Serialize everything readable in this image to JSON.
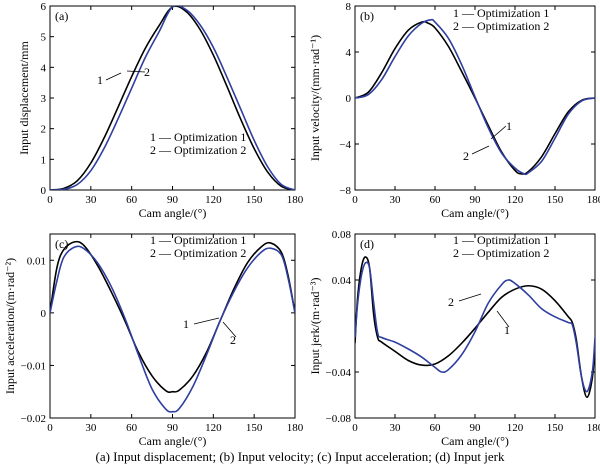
{
  "caption": "(a) Input displacement; (b) Input velocity; (c) Input acceleration; (d) Input jerk",
  "colors": {
    "optimization1": "#000000",
    "optimization2": "#2f3fa0"
  },
  "chart_data": [
    {
      "id": "a",
      "type": "line",
      "panel_label": "(a)",
      "xlabel": "Cam angle/(°)",
      "ylabel": "Input displacement/mm",
      "xlim": [
        0,
        180
      ],
      "ylim": [
        0,
        6
      ],
      "xticks": [
        0,
        30,
        60,
        90,
        120,
        150,
        180
      ],
      "yticks": [
        0,
        1,
        2,
        3,
        4,
        5,
        6
      ],
      "ytick_labels": [
        "0",
        "1",
        "2",
        "3",
        "4",
        "5",
        "6"
      ],
      "legend": [
        "1 — Optimization 1",
        "2 — Optimization 2"
      ],
      "annotations": [
        "1",
        "2"
      ],
      "series": [
        {
          "name": "Optimization 1",
          "x": [
            0,
            10,
            20,
            30,
            40,
            50,
            60,
            70,
            80,
            90,
            100,
            110,
            120,
            130,
            140,
            150,
            160,
            170,
            180
          ],
          "values": [
            0,
            0.05,
            0.3,
            0.88,
            1.72,
            2.7,
            3.7,
            4.62,
            5.35,
            5.97,
            5.82,
            5.25,
            4.4,
            3.38,
            2.32,
            1.35,
            0.58,
            0.12,
            0
          ]
        },
        {
          "name": "Optimization 2",
          "x": [
            0,
            10,
            20,
            30,
            40,
            50,
            60,
            70,
            80,
            90,
            100,
            110,
            120,
            130,
            140,
            150,
            160,
            170,
            180
          ],
          "values": [
            0,
            0.02,
            0.18,
            0.63,
            1.38,
            2.32,
            3.32,
            4.32,
            5.15,
            5.97,
            5.88,
            5.4,
            4.65,
            3.68,
            2.65,
            1.62,
            0.75,
            0.18,
            0
          ]
        }
      ]
    },
    {
      "id": "b",
      "type": "line",
      "panel_label": "(b)",
      "xlabel": "Cam angle/(°)",
      "ylabel": "Input velocity/(mm·rad⁻¹)",
      "xlim": [
        0,
        180
      ],
      "ylim": [
        -8,
        8
      ],
      "xticks": [
        0,
        30,
        60,
        90,
        120,
        150,
        180
      ],
      "yticks": [
        -8,
        -4,
        0,
        4,
        8
      ],
      "ytick_labels": [
        "−8",
        "−4",
        "0",
        "4",
        "8"
      ],
      "legend": [
        "1 — Optimization 1",
        "2 — Optimization 2"
      ],
      "annotations": [
        "1",
        "2"
      ],
      "series": [
        {
          "name": "Optimization 1",
          "x": [
            0,
            10,
            20,
            30,
            40,
            50,
            55,
            60,
            70,
            80,
            90,
            100,
            110,
            120,
            125,
            130,
            140,
            150,
            160,
            170,
            180
          ],
          "values": [
            0,
            0.5,
            2.2,
            4.3,
            5.9,
            6.6,
            6.5,
            6.1,
            4.5,
            2.3,
            0,
            -2.4,
            -4.7,
            -6.3,
            -6.6,
            -6.4,
            -5.1,
            -3.1,
            -1.2,
            -0.2,
            0
          ]
        },
        {
          "name": "Optimization 2",
          "x": [
            0,
            10,
            20,
            30,
            40,
            50,
            57,
            60,
            70,
            80,
            90,
            100,
            110,
            120,
            127,
            130,
            140,
            150,
            160,
            170,
            180
          ],
          "values": [
            0,
            0.3,
            1.6,
            3.6,
            5.4,
            6.5,
            6.8,
            6.6,
            5.2,
            2.9,
            0.1,
            -2.6,
            -4.8,
            -6.1,
            -6.6,
            -6.5,
            -5.5,
            -3.5,
            -1.4,
            -0.25,
            0
          ]
        }
      ]
    },
    {
      "id": "c",
      "type": "line",
      "panel_label": "(c)",
      "xlabel": "Cam angle/(°)",
      "ylabel": "Input acceleration/(m·rad⁻²)",
      "xlim": [
        0,
        180
      ],
      "ylim": [
        -0.02,
        0.015
      ],
      "xticks": [
        0,
        30,
        60,
        90,
        120,
        150,
        180
      ],
      "yticks": [
        -0.02,
        -0.01,
        0,
        0.01
      ],
      "ytick_labels": [
        "−0.02",
        "−0.01",
        "0",
        "0.01"
      ],
      "legend": [
        "1 — Optimization 1",
        "2 — Optimization 2"
      ],
      "annotations": [
        "1",
        "2"
      ],
      "series": [
        {
          "name": "Optimization 1",
          "x": [
            0,
            5,
            10,
            18,
            25,
            35,
            45,
            55,
            65,
            75,
            85,
            90,
            95,
            105,
            115,
            125,
            135,
            145,
            155,
            162,
            170,
            175,
            180
          ],
          "values": [
            0,
            0.0085,
            0.012,
            0.0135,
            0.0128,
            0.009,
            0.004,
            -0.0015,
            -0.0075,
            -0.012,
            -0.0148,
            -0.015,
            -0.0147,
            -0.012,
            -0.0075,
            -0.0015,
            0.0045,
            0.0095,
            0.0125,
            0.0133,
            0.0115,
            0.007,
            0
          ]
        },
        {
          "name": "Optimization 2",
          "x": [
            0,
            5,
            10,
            18,
            25,
            35,
            45,
            55,
            65,
            75,
            85,
            90,
            95,
            105,
            115,
            125,
            135,
            145,
            155,
            162,
            170,
            175,
            180
          ],
          "values": [
            0,
            0.006,
            0.0105,
            0.0125,
            0.0122,
            0.0095,
            0.005,
            -0.001,
            -0.008,
            -0.0145,
            -0.0183,
            -0.0188,
            -0.0182,
            -0.014,
            -0.008,
            -0.0015,
            0.004,
            0.0085,
            0.0115,
            0.0123,
            0.011,
            0.0065,
            0
          ]
        }
      ]
    },
    {
      "id": "d",
      "type": "line",
      "panel_label": "(d)",
      "xlabel": "Cam angle/(°)",
      "ylabel": "Input jerk/(m·rad⁻³)",
      "xlim": [
        0,
        180
      ],
      "ylim": [
        -0.08,
        0.08
      ],
      "xticks": [
        0,
        30,
        60,
        90,
        120,
        150,
        180
      ],
      "yticks": [
        -0.08,
        -0.04,
        0.04,
        0.08
      ],
      "ytick_labels": [
        "−0.08",
        "−0.04",
        "0.04",
        "0.08"
      ],
      "legend": [
        "1 — Optimization 1",
        "2 — Optimization 2"
      ],
      "annotations": [
        "2",
        "1"
      ],
      "series": [
        {
          "name": "Optimization 1",
          "x": [
            0,
            2,
            5,
            8,
            11,
            14,
            17,
            20,
            30,
            40,
            50,
            60,
            70,
            80,
            90,
            100,
            110,
            120,
            130,
            140,
            150,
            160,
            163,
            166,
            170,
            174,
            178,
            180
          ],
          "values": [
            -0.015,
            0.025,
            0.052,
            0.06,
            0.05,
            0.01,
            -0.01,
            -0.014,
            -0.022,
            -0.03,
            -0.034,
            -0.033,
            -0.026,
            -0.015,
            -0.002,
            0.012,
            0.025,
            0.032,
            0.035,
            0.032,
            0.022,
            0.008,
            0.003,
            -0.012,
            -0.045,
            -0.062,
            -0.045,
            -0.015
          ]
        },
        {
          "name": "Optimization 2",
          "x": [
            0,
            2,
            5,
            8,
            11,
            14,
            17,
            20,
            30,
            40,
            50,
            60,
            65,
            70,
            80,
            90,
            100,
            110,
            115,
            120,
            130,
            140,
            150,
            160,
            163,
            166,
            170,
            174,
            178,
            180
          ],
          "values": [
            -0.01,
            0.02,
            0.045,
            0.055,
            0.05,
            0.02,
            -0.006,
            -0.01,
            -0.014,
            -0.02,
            -0.027,
            -0.036,
            -0.04,
            -0.038,
            -0.025,
            -0.005,
            0.02,
            0.036,
            0.04,
            0.037,
            0.027,
            0.015,
            0.008,
            0.003,
            0.001,
            -0.015,
            -0.045,
            -0.057,
            -0.04,
            -0.01
          ]
        }
      ]
    }
  ]
}
